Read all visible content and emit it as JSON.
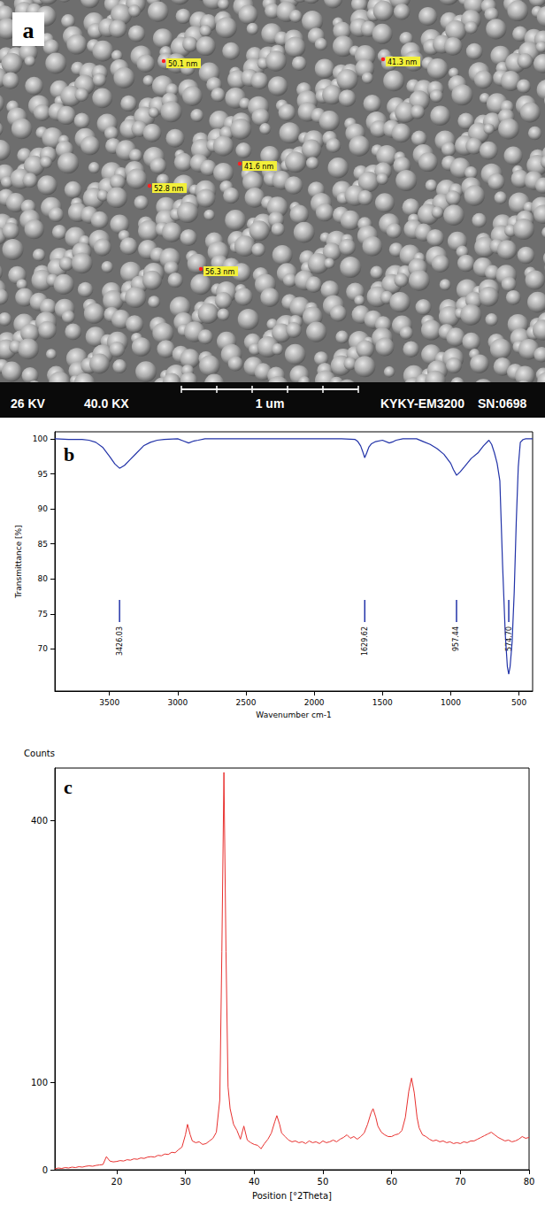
{
  "sem_image": {
    "letter": "a",
    "measurements": [
      "50.1 nm",
      "41.3 nm",
      "41.6 nm",
      "52.8 nm",
      "56.3 nm"
    ],
    "footer": {
      "voltage": "26 KV",
      "magnification": "40.0 KX",
      "scale_bar": "1 um",
      "instrument": "KYKY-EM3200",
      "serial": "SN:0698"
    }
  },
  "chart_data": [
    {
      "type": "line",
      "annotations": [
        "b"
      ],
      "x_label": "Wavenumber cm-1",
      "y_label": "Transmittance [%]",
      "color": "#2233a8",
      "grid": false,
      "xlim": [
        3900,
        400
      ],
      "xticks": [
        3500,
        3000,
        2500,
        2000,
        1500,
        1000,
        500
      ],
      "ylim": [
        64,
        101
      ],
      "yticks": [
        70,
        75,
        80,
        85,
        90,
        95,
        100
      ],
      "x": [
        3900,
        3800,
        3700,
        3650,
        3600,
        3550,
        3500,
        3460,
        3426,
        3390,
        3350,
        3300,
        3250,
        3200,
        3150,
        3100,
        3000,
        2960,
        2920,
        2880,
        2850,
        2800,
        2600,
        2400,
        2200,
        2000,
        1800,
        1700,
        1680,
        1660,
        1645,
        1630,
        1615,
        1600,
        1580,
        1550,
        1500,
        1450,
        1420,
        1400,
        1350,
        1300,
        1250,
        1200,
        1150,
        1100,
        1050,
        1000,
        980,
        957,
        930,
        900,
        850,
        800,
        760,
        720,
        700,
        680,
        660,
        640,
        620,
        600,
        585,
        575,
        565,
        550,
        535,
        520,
        505,
        490,
        470,
        450,
        420,
        400
      ],
      "values": [
        100,
        99.9,
        99.9,
        99.8,
        99.5,
        98.8,
        97.5,
        96.4,
        95.8,
        96.2,
        97,
        98,
        99,
        99.5,
        99.8,
        99.9,
        100,
        99.7,
        99.4,
        99.7,
        99.8,
        100,
        100,
        100,
        100,
        100,
        100,
        99.9,
        99.6,
        99,
        98.2,
        97.3,
        98,
        98.8,
        99.3,
        99.6,
        99.8,
        99.4,
        99.6,
        99.8,
        100,
        100,
        100,
        99.6,
        99.2,
        98.6,
        97.8,
        96.5,
        95.6,
        94.8,
        95.3,
        96,
        97.2,
        98,
        99,
        99.8,
        99.2,
        98,
        96.5,
        94,
        82,
        72,
        67.5,
        66.4,
        67.5,
        71,
        78,
        88,
        96,
        99.5,
        99.9,
        100,
        100,
        100
      ],
      "peaks": [
        {
          "value": 3426.03,
          "label": "3426.03"
        },
        {
          "value": 1629.62,
          "label": "1629.62"
        },
        {
          "value": 957.44,
          "label": "957.44"
        },
        {
          "value": 574.7,
          "label": "574.70"
        }
      ]
    },
    {
      "type": "line",
      "annotations": [
        "c"
      ],
      "x_label": "Position [°2Theta]",
      "y_label": "Counts",
      "color": "#e8302e",
      "grid": false,
      "xlim": [
        11,
        80
      ],
      "xticks": [
        20,
        30,
        40,
        50,
        60,
        70,
        80
      ],
      "ylim": [
        0,
        460
      ],
      "yticks": [
        0,
        100,
        400
      ],
      "x": [
        11,
        11.5,
        12,
        12.5,
        13,
        13.5,
        14,
        14.5,
        15,
        15.5,
        16,
        16.5,
        17,
        17.5,
        18,
        18.5,
        19,
        19.5,
        20,
        20.5,
        21,
        21.5,
        22,
        22.5,
        23,
        23.5,
        24,
        24.5,
        25,
        25.5,
        26,
        26.5,
        27,
        27.5,
        28,
        28.5,
        29,
        29.5,
        30,
        30.3,
        30.7,
        31,
        31.5,
        32,
        32.5,
        33,
        33.5,
        34,
        34.5,
        35,
        35.3,
        35.6,
        35.9,
        36.2,
        36.5,
        37,
        37.5,
        38,
        38.5,
        39,
        39.5,
        40,
        40.5,
        41,
        41.5,
        42,
        42.5,
        43,
        43.3,
        43.7,
        44,
        44.5,
        45,
        45.5,
        46,
        46.5,
        47,
        47.5,
        48,
        48.5,
        49,
        49.5,
        50,
        50.5,
        51,
        51.5,
        52,
        52.5,
        53,
        53.5,
        54,
        54.5,
        55,
        55.5,
        56,
        56.5,
        57,
        57.3,
        57.7,
        58,
        58.5,
        59,
        59.5,
        60,
        60.5,
        61,
        61.5,
        62,
        62.5,
        62.9,
        63.3,
        63.7,
        64,
        64.5,
        65,
        65.5,
        66,
        66.5,
        67,
        67.5,
        68,
        68.5,
        69,
        69.5,
        70,
        70.5,
        71,
        71.5,
        72,
        72.5,
        73,
        73.5,
        74,
        74.5,
        75,
        75.5,
        76,
        76.5,
        77,
        77.5,
        78,
        78.5,
        79,
        79.5,
        80
      ],
      "values": [
        1,
        2,
        1.5,
        2.5,
        2,
        3,
        2.5,
        3.5,
        3,
        4,
        4.5,
        4,
        5,
        5.5,
        6,
        15,
        10,
        9,
        9.5,
        10.5,
        10,
        11.5,
        11,
        12.5,
        12,
        13.5,
        13,
        14.5,
        15,
        14.5,
        16.5,
        16,
        18,
        17.5,
        20,
        19.5,
        23,
        26,
        40,
        52,
        40,
        33,
        31,
        32,
        29,
        30,
        33,
        36,
        43,
        80,
        250,
        455,
        250,
        95,
        70,
        52,
        45,
        35,
        50,
        34,
        31,
        29,
        28,
        24,
        30,
        35,
        42,
        55,
        62,
        52,
        42,
        38,
        34,
        32,
        33,
        31,
        32,
        30,
        33,
        31,
        32,
        30,
        33,
        31,
        32,
        34,
        32,
        35,
        37,
        40,
        36,
        38,
        35,
        38,
        42,
        52,
        65,
        70,
        60,
        50,
        43,
        40,
        38,
        38,
        40,
        41,
        45,
        60,
        90,
        105,
        88,
        60,
        48,
        40,
        38,
        35,
        33,
        34,
        32,
        33,
        31,
        32,
        30,
        31,
        30,
        32,
        31,
        33,
        33,
        35,
        37,
        39,
        41,
        43,
        40,
        37,
        35,
        33,
        34,
        32,
        33,
        35,
        38,
        36,
        37
      ]
    }
  ]
}
